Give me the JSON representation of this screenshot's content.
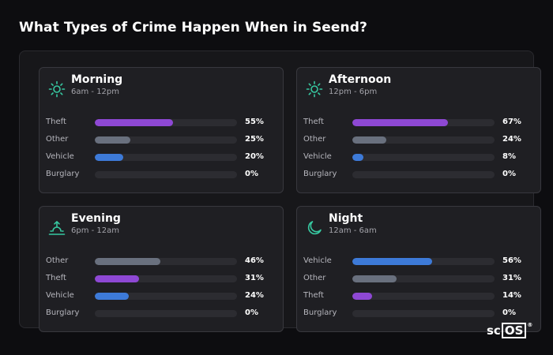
{
  "title": "What Types of Crime Happen When in Seend?",
  "brand": {
    "prefix": "sc",
    "boxed": "OS",
    "reg": "®"
  },
  "colors": {
    "theft": "#8e48d4",
    "other": "#69707e",
    "vehicle": "#3d7ad8",
    "burglary": "#2c2c31",
    "icon": "#37c9a1"
  },
  "chart_data": {
    "type": "bar",
    "title": "What Types of Crime Happen When in Seend?",
    "unit": "%",
    "xlim": [
      0,
      100
    ],
    "panels": [
      {
        "name": "Morning",
        "range": "6am - 12pm",
        "icon": "sun-icon",
        "bars": [
          {
            "label": "Theft",
            "value": 55,
            "pct": "55%",
            "color": "#8e48d4"
          },
          {
            "label": "Other",
            "value": 25,
            "pct": "25%",
            "color": "#69707e"
          },
          {
            "label": "Vehicle",
            "value": 20,
            "pct": "20%",
            "color": "#3d7ad8"
          },
          {
            "label": "Burglary",
            "value": 0,
            "pct": "0%",
            "color": "#3d7ad8"
          }
        ]
      },
      {
        "name": "Afternoon",
        "range": "12pm - 6pm",
        "icon": "sun-icon",
        "bars": [
          {
            "label": "Theft",
            "value": 67,
            "pct": "67%",
            "color": "#8e48d4"
          },
          {
            "label": "Other",
            "value": 24,
            "pct": "24%",
            "color": "#69707e"
          },
          {
            "label": "Vehicle",
            "value": 8,
            "pct": "8%",
            "color": "#3d7ad8"
          },
          {
            "label": "Burglary",
            "value": 0,
            "pct": "0%",
            "color": "#3d7ad8"
          }
        ]
      },
      {
        "name": "Evening",
        "range": "6pm - 12am",
        "icon": "sunset-icon",
        "bars": [
          {
            "label": "Other",
            "value": 46,
            "pct": "46%",
            "color": "#69707e"
          },
          {
            "label": "Theft",
            "value": 31,
            "pct": "31%",
            "color": "#8e48d4"
          },
          {
            "label": "Vehicle",
            "value": 24,
            "pct": "24%",
            "color": "#3d7ad8"
          },
          {
            "label": "Burglary",
            "value": 0,
            "pct": "0%",
            "color": "#3d7ad8"
          }
        ]
      },
      {
        "name": "Night",
        "range": "12am - 6am",
        "icon": "moon-icon",
        "bars": [
          {
            "label": "Vehicle",
            "value": 56,
            "pct": "56%",
            "color": "#3d7ad8"
          },
          {
            "label": "Other",
            "value": 31,
            "pct": "31%",
            "color": "#69707e"
          },
          {
            "label": "Theft",
            "value": 14,
            "pct": "14%",
            "color": "#8e48d4"
          },
          {
            "label": "Burglary",
            "value": 0,
            "pct": "0%",
            "color": "#3d7ad8"
          }
        ]
      }
    ]
  }
}
